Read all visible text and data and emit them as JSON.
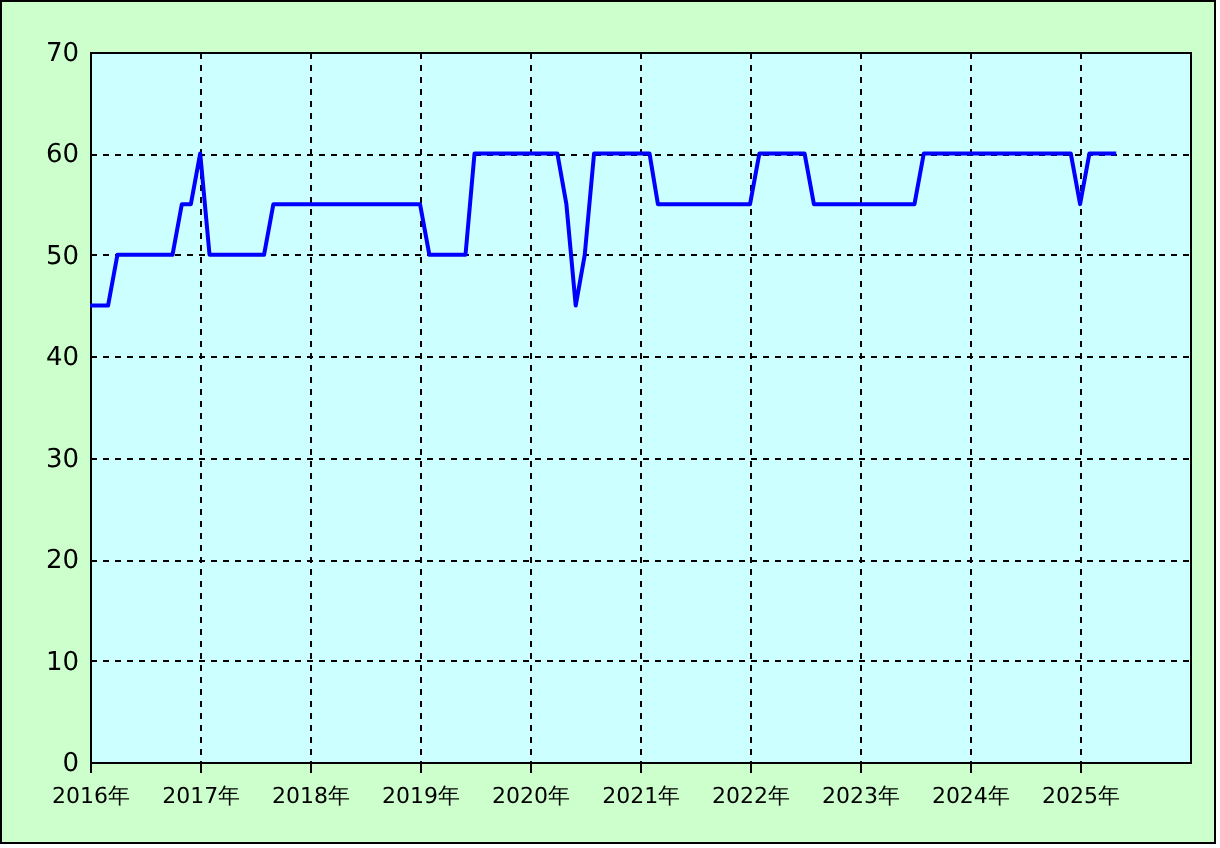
{
  "chart_data": {
    "type": "line",
    "x": [
      "2016-01",
      "2016-02",
      "2016-03",
      "2016-04",
      "2016-05",
      "2016-06",
      "2016-07",
      "2016-08",
      "2016-09",
      "2016-10",
      "2016-11",
      "2016-12",
      "2017-01",
      "2017-02",
      "2017-03",
      "2017-04",
      "2017-05",
      "2017-06",
      "2017-07",
      "2017-08",
      "2017-09",
      "2017-10",
      "2017-11",
      "2017-12",
      "2018-01",
      "2018-02",
      "2018-03",
      "2018-04",
      "2018-05",
      "2018-06",
      "2018-07",
      "2018-08",
      "2018-09",
      "2018-10",
      "2018-11",
      "2018-12",
      "2019-01",
      "2019-02",
      "2019-03",
      "2019-04",
      "2019-05",
      "2019-06",
      "2019-07",
      "2019-08",
      "2019-09",
      "2019-10",
      "2019-11",
      "2019-12",
      "2020-01",
      "2020-02",
      "2020-03",
      "2020-04",
      "2020-05",
      "2020-06",
      "2020-07",
      "2020-08",
      "2020-09",
      "2020-10",
      "2020-11",
      "2020-12",
      "2021-01",
      "2021-02",
      "2021-03",
      "2021-04",
      "2021-05",
      "2021-06",
      "2021-07",
      "2021-08",
      "2021-09",
      "2021-10",
      "2021-11",
      "2021-12",
      "2022-01",
      "2022-02",
      "2022-03",
      "2022-04",
      "2022-05",
      "2022-06",
      "2022-07",
      "2022-08",
      "2022-09",
      "2022-10",
      "2022-11",
      "2022-12",
      "2023-01",
      "2023-02",
      "2023-03",
      "2023-04",
      "2023-05",
      "2023-06",
      "2023-07",
      "2023-08",
      "2023-09",
      "2023-10",
      "2023-11",
      "2023-12",
      "2024-01",
      "2024-02",
      "2024-03",
      "2024-04",
      "2024-05",
      "2024-06",
      "2024-07",
      "2024-08",
      "2024-09",
      "2024-10",
      "2024-11",
      "2024-12",
      "2025-01",
      "2025-02",
      "2025-03",
      "2025-04",
      "2025-05"
    ],
    "series": [
      {
        "color": "#0000ff",
        "values": [
          45,
          45,
          45,
          50,
          50,
          50,
          50,
          50,
          50,
          50,
          55,
          55,
          60,
          50,
          50,
          50,
          50,
          50,
          50,
          50,
          55,
          55,
          55,
          55,
          55,
          55,
          55,
          55,
          55,
          55,
          55,
          55,
          55,
          55,
          55,
          55,
          55,
          50,
          50,
          50,
          50,
          50,
          60,
          60,
          60,
          60,
          60,
          60,
          60,
          60,
          60,
          60,
          55,
          45,
          50,
          60,
          60,
          60,
          60,
          60,
          60,
          60,
          55,
          55,
          55,
          55,
          55,
          55,
          55,
          55,
          55,
          55,
          55,
          60,
          60,
          60,
          60,
          60,
          60,
          55,
          55,
          55,
          55,
          55,
          55,
          55,
          55,
          55,
          55,
          55,
          55,
          60,
          60,
          60,
          60,
          60,
          60,
          60,
          60,
          60,
          60,
          60,
          60,
          60,
          60,
          60,
          60,
          60,
          55,
          60,
          60,
          60,
          60
        ]
      }
    ],
    "xlim": [
      "2016-01",
      "2026-01"
    ],
    "xticks": [
      {
        "value": "2016-01",
        "label": "2016年"
      },
      {
        "value": "2017-01",
        "label": "2017年"
      },
      {
        "value": "2018-01",
        "label": "2018年"
      },
      {
        "value": "2019-01",
        "label": "2019年"
      },
      {
        "value": "2020-01",
        "label": "2020年"
      },
      {
        "value": "2021-01",
        "label": "2021年"
      },
      {
        "value": "2022-01",
        "label": "2022年"
      },
      {
        "value": "2023-01",
        "label": "2023年"
      },
      {
        "value": "2024-01",
        "label": "2024年"
      },
      {
        "value": "2025-01",
        "label": "2025年"
      }
    ],
    "ylim": [
      0,
      70
    ],
    "yticks": [
      0,
      10,
      20,
      30,
      40,
      50,
      60,
      70
    ],
    "grid": true,
    "line_style": "solid",
    "marker": "none",
    "legend": false
  }
}
